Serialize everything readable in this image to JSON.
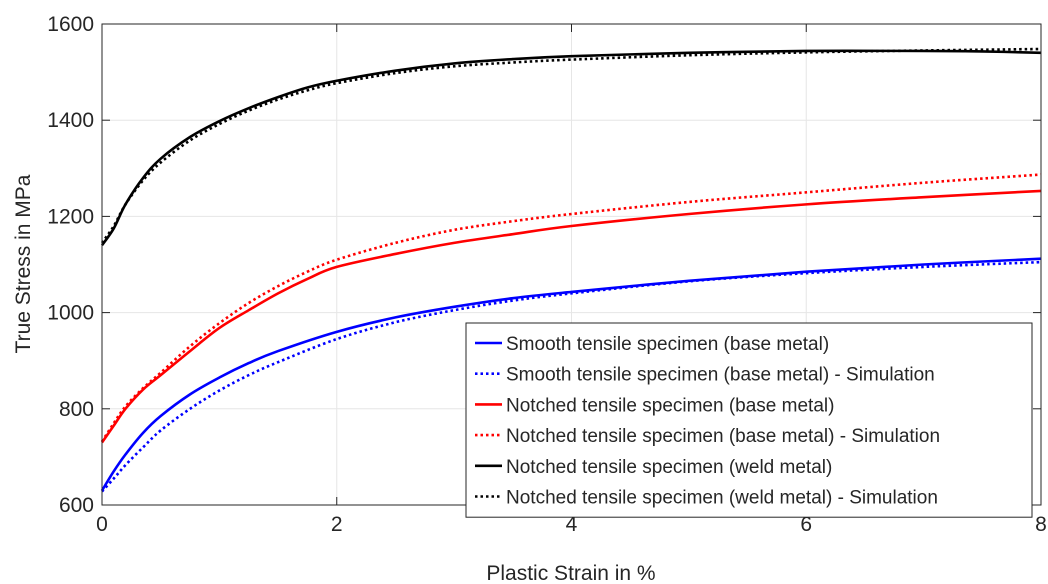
{
  "chart_data": {
    "type": "line",
    "title": "",
    "xlabel": "Plastic Strain in %",
    "ylabel": "True Stress in MPa",
    "xlim": [
      0,
      8
    ],
    "ylim": [
      600,
      1600
    ],
    "xticks": [
      0,
      2,
      4,
      6,
      8
    ],
    "yticks": [
      600,
      800,
      1000,
      1200,
      1400,
      1600
    ],
    "xtick_labels": [
      "0",
      "2",
      "4",
      "6",
      "8"
    ],
    "ytick_labels": [
      "600",
      "800",
      "1000",
      "1200",
      "1400",
      "1600"
    ],
    "grid": true,
    "legend_position": "bottom-right",
    "series": [
      {
        "name": "Smooth tensile specimen (base metal)",
        "color": "#0000ff",
        "dash": "solid",
        "x": [
          0,
          0.1,
          0.2,
          0.35,
          0.5,
          0.75,
          1.0,
          1.25,
          1.5,
          2.0,
          2.5,
          3.0,
          3.5,
          4.0,
          5.0,
          6.0,
          7.0,
          8.0
        ],
        "y": [
          630,
          670,
          705,
          750,
          785,
          830,
          865,
          895,
          920,
          960,
          990,
          1012,
          1030,
          1043,
          1066,
          1085,
          1100,
          1112
        ]
      },
      {
        "name": "Smooth tensile specimen (base metal) - Simulation",
        "color": "#0000ff",
        "dash": "dotted",
        "x": [
          0,
          0.1,
          0.2,
          0.35,
          0.5,
          0.75,
          1.0,
          1.25,
          1.5,
          2.0,
          2.5,
          3.0,
          3.5,
          4.0,
          5.0,
          6.0,
          7.0,
          8.0
        ],
        "y": [
          628,
          655,
          683,
          720,
          755,
          800,
          838,
          870,
          897,
          945,
          980,
          1005,
          1025,
          1040,
          1065,
          1082,
          1095,
          1105
        ]
      },
      {
        "name": "Notched tensile specimen (base metal)",
        "color": "#ff0000",
        "dash": "solid",
        "x": [
          0,
          0.1,
          0.2,
          0.35,
          0.5,
          0.75,
          1.0,
          1.25,
          1.5,
          1.75,
          2.0,
          2.5,
          3.0,
          3.5,
          4.0,
          5.0,
          6.0,
          7.0,
          8.0
        ],
        "y": [
          730,
          765,
          800,
          840,
          870,
          920,
          968,
          1005,
          1040,
          1070,
          1095,
          1122,
          1145,
          1163,
          1180,
          1205,
          1225,
          1240,
          1253
        ]
      },
      {
        "name": "Notched tensile specimen (base metal) - Simulation",
        "color": "#ff0000",
        "dash": "dotted",
        "x": [
          0,
          0.1,
          0.2,
          0.35,
          0.5,
          0.75,
          1.0,
          1.25,
          1.5,
          1.75,
          2.0,
          2.5,
          3.0,
          3.5,
          4.0,
          5.0,
          6.0,
          7.0,
          8.0
        ],
        "y": [
          732,
          770,
          805,
          843,
          875,
          930,
          978,
          1020,
          1055,
          1085,
          1110,
          1145,
          1172,
          1190,
          1205,
          1230,
          1250,
          1270,
          1287
        ]
      },
      {
        "name": "Notched tensile specimen (weld metal)",
        "color": "#000000",
        "dash": "solid",
        "x": [
          0,
          0.1,
          0.2,
          0.35,
          0.5,
          0.75,
          1.0,
          1.25,
          1.5,
          1.75,
          2.0,
          2.5,
          3.0,
          3.5,
          4.0,
          5.0,
          6.0,
          7.0,
          7.5,
          8.0
        ],
        "y": [
          1140,
          1175,
          1225,
          1280,
          1320,
          1365,
          1398,
          1425,
          1448,
          1468,
          1482,
          1503,
          1518,
          1527,
          1533,
          1540,
          1544,
          1544,
          1543,
          1540
        ]
      },
      {
        "name": "Notched tensile specimen (weld metal) - Simulation",
        "color": "#000000",
        "dash": "dotted",
        "x": [
          0,
          0.1,
          0.2,
          0.35,
          0.5,
          0.75,
          1.0,
          1.25,
          1.5,
          1.75,
          2.0,
          2.5,
          3.0,
          3.5,
          4.0,
          5.0,
          6.0,
          7.0,
          8.0
        ],
        "y": [
          1145,
          1180,
          1225,
          1275,
          1312,
          1358,
          1392,
          1420,
          1443,
          1462,
          1477,
          1498,
          1512,
          1520,
          1526,
          1535,
          1541,
          1545,
          1548
        ]
      }
    ]
  }
}
